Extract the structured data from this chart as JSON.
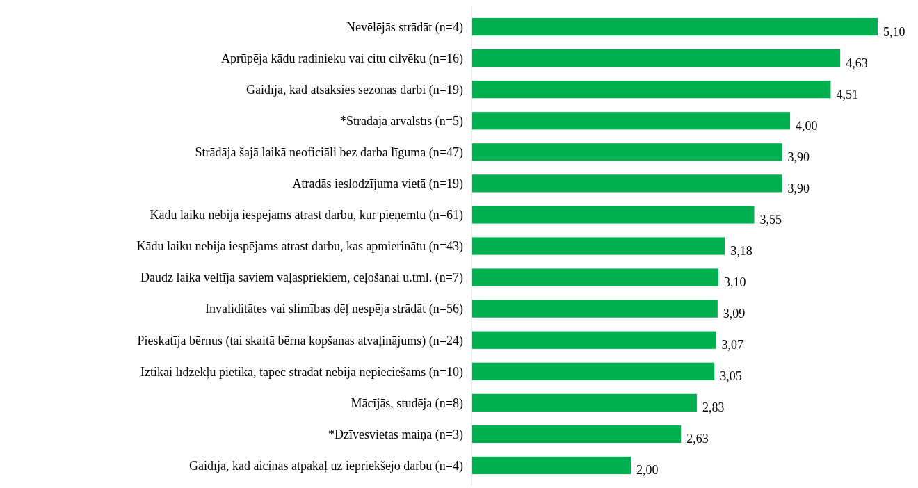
{
  "chart_data": {
    "type": "bar",
    "orientation": "horizontal",
    "color": "#00b050",
    "value_labels": [
      "5,10",
      "4,63",
      "4,51",
      "4,00",
      "3,90",
      "3,90",
      "3,55",
      "3,18",
      "3,10",
      "3,09",
      "3,07",
      "3,05",
      "2,83",
      "2,63",
      "2,00"
    ],
    "categories": [
      "Nevēlējās strādāt (n=4)",
      "Aprūpēja kādu radinieku vai citu cilvēku (n=16)",
      "Gaidīja, kad atsāksies sezonas darbi (n=19)",
      "*Strādāja ārvalstīs (n=5)",
      "Strādāja šajā laikā neoficiāli bez darba līguma (n=47)",
      "Atradās ieslodzījuma vietā (n=19)",
      "Kādu laiku nebija iespējams atrast darbu, kur pieņemtu (n=61)",
      "Kādu laiku nebija iespējams atrast darbu, kas apmierinātu (n=43)",
      "Daudz laika veltīja saviem vaļaspriekiem, ceļošanai u.tml. (n=7)",
      "Invaliditātes vai slimības dēļ nespēja strādāt (n=56)",
      "Pieskatīja bērnus (tai skaitā bērna kopšanas atvaļinājums) (n=24)",
      "Iztikai līdzekļu pietika, tāpēc strādāt nebija nepieciešams (n=10)",
      "Mācījās, studēja (n=8)",
      "*Dzīvesvietas maiņa (n=3)",
      "Gaidīja, kad aicinās atpakaļ uz iepriekšējo darbu (n=4)"
    ],
    "values": [
      5.1,
      4.63,
      4.51,
      4.0,
      3.9,
      3.9,
      3.55,
      3.18,
      3.1,
      3.09,
      3.07,
      3.05,
      2.83,
      2.63,
      2.0
    ]
  }
}
